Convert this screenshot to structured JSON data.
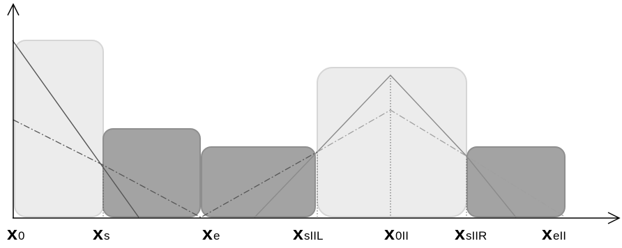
{
  "diagram": {
    "x_labels": [
      {
        "base": "x",
        "sub": "0"
      },
      {
        "base": "x",
        "sub": "s"
      },
      {
        "base": "x",
        "sub": "e"
      },
      {
        "base": "x",
        "sub": "sIIL"
      },
      {
        "base": "x",
        "sub": "0II"
      },
      {
        "base": "x",
        "sub": "sIIR"
      },
      {
        "base": "x",
        "sub": "eII"
      }
    ],
    "colors": {
      "light_region": "#ececec",
      "dark_region": "#a3a3a3",
      "axis": "#000000"
    }
  }
}
